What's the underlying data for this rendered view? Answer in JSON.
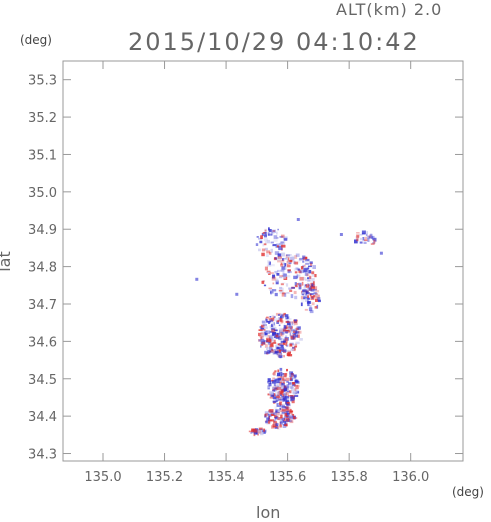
{
  "header": {
    "alt_label": "ALT(km) 2.0",
    "datetime": "2015/10/29 04:10:42"
  },
  "chart_data": {
    "type": "heatmap",
    "title": "2015/10/29 04:10:42",
    "xlabel": "lon",
    "ylabel": "lat",
    "x_unit": "(deg)",
    "y_unit": "(deg)",
    "xlim": [
      134.87,
      136.17
    ],
    "ylim": [
      34.28,
      35.35
    ],
    "x_ticks": [
      135.0,
      135.2,
      135.4,
      135.6,
      135.8,
      136.0
    ],
    "x_tick_labels": [
      "135.0",
      "135.2",
      "135.4",
      "135.6",
      "135.8",
      "136.0"
    ],
    "y_ticks": [
      34.3,
      34.4,
      34.5,
      34.6,
      34.7,
      34.8,
      34.9,
      35.0,
      35.1,
      35.2,
      35.3
    ],
    "y_tick_labels": [
      "34.3",
      "34.4",
      "34.5",
      "34.6",
      "34.7",
      "34.8",
      "34.9",
      "35.0",
      "35.1",
      "35.2",
      "35.3"
    ],
    "grid": false,
    "colors": {
      "positive": "#e03030",
      "negative": "#3030d0"
    }
  }
}
